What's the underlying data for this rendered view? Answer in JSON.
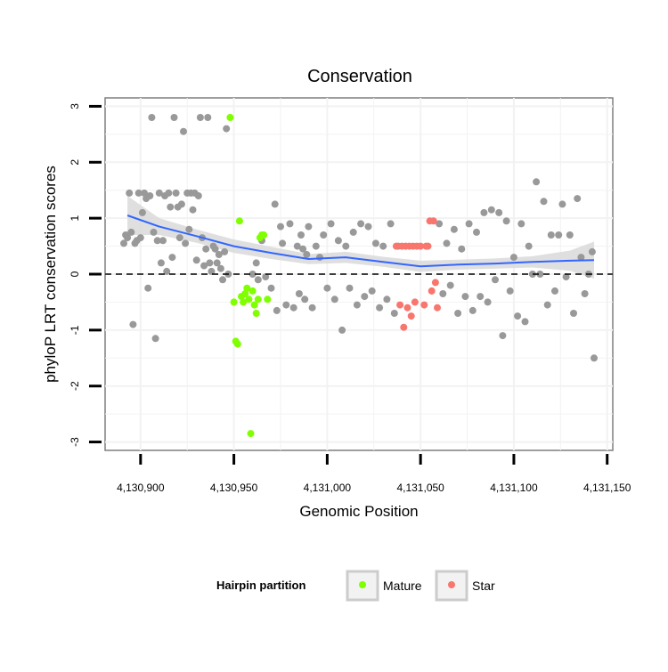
{
  "chart_data": {
    "type": "scatter",
    "title": "Conservation",
    "xlabel": "Genomic Position",
    "ylabel": "phyloP LRT conservation scores",
    "xlim": [
      4130881,
      4131153
    ],
    "ylim": [
      -3.15,
      3.15
    ],
    "x_ticks": [
      4130900,
      4130950,
      4131000,
      4131050,
      4131100,
      4131150
    ],
    "x_tick_labels": [
      "4,130,900",
      "4,130,950",
      "4,131,000",
      "4,131,050",
      "4,131,100",
      "4,131,150"
    ],
    "y_ticks": [
      -3,
      -2,
      -1,
      0,
      1,
      2,
      3
    ],
    "y_tick_labels": [
      "-3",
      "-2",
      "-1",
      "0",
      "1",
      "2",
      "3"
    ],
    "reference_line_y": 0,
    "grid": true,
    "legend": {
      "title": "Hairpin partition",
      "position": "bottom",
      "entries": [
        {
          "label": "Mature",
          "color": "#7fff00"
        },
        {
          "label": "Star",
          "color": "#f8766d"
        }
      ]
    },
    "colors": {
      "other": "#999999",
      "mature": "#7fff00",
      "star": "#f8766d",
      "smooth": "#3366ff",
      "ribbon": "#d9d9d9"
    },
    "series": [
      {
        "name": "Other",
        "x": [
          4130891,
          4130892,
          4130893,
          4130894,
          4130895,
          4130896,
          4130897,
          4130898,
          4130899,
          4130900,
          4130901,
          4130902,
          4130903,
          4130904,
          4130905,
          4130906,
          4130907,
          4130908,
          4130909,
          4130910,
          4130911,
          4130912,
          4130913,
          4130914,
          4130915,
          4130916,
          4130917,
          4130918,
          4130919,
          4130920,
          4130921,
          4130922,
          4130923,
          4130924,
          4130925,
          4130926,
          4130927,
          4130928,
          4130929,
          4130930,
          4130931,
          4130932,
          4130933,
          4130934,
          4130935,
          4130936,
          4130937,
          4130938,
          4130939,
          4130940,
          4130941,
          4130942,
          4130943,
          4130944,
          4130945,
          4130946,
          4130947,
          4130960,
          4130962,
          4130963,
          4130965,
          4130967,
          4130970,
          4130972,
          4130973,
          4130975,
          4130976,
          4130978,
          4130980,
          4130982,
          4130984,
          4130985,
          4130986,
          4130987,
          4130988,
          4130989,
          4130990,
          4130992,
          4130994,
          4130996,
          4130998,
          4131000,
          4131002,
          4131004,
          4131006,
          4131008,
          4131010,
          4131012,
          4131014,
          4131016,
          4131018,
          4131020,
          4131022,
          4131024,
          4131026,
          4131028,
          4131030,
          4131032,
          4131034,
          4131036,
          4131038,
          4131060,
          4131062,
          4131064,
          4131066,
          4131068,
          4131070,
          4131072,
          4131074,
          4131076,
          4131078,
          4131080,
          4131082,
          4131084,
          4131086,
          4131088,
          4131090,
          4131092,
          4131094,
          4131096,
          4131098,
          4131100,
          4131102,
          4131104,
          4131106,
          4131108,
          4131110,
          4131112,
          4131114,
          4131116,
          4131118,
          4131120,
          4131122,
          4131124,
          4131126,
          4131128,
          4131130,
          4131132,
          4131134,
          4131136,
          4131138,
          4131140,
          4131142,
          4131143
        ],
        "y": [
          0.55,
          0.7,
          0.65,
          1.45,
          0.75,
          -0.9,
          0.55,
          0.6,
          1.45,
          0.65,
          1.1,
          1.45,
          1.35,
          -0.25,
          1.4,
          2.8,
          0.75,
          -1.15,
          0.6,
          1.45,
          0.2,
          0.6,
          1.4,
          0.05,
          1.45,
          1.2,
          0.3,
          2.8,
          1.45,
          1.2,
          0.65,
          1.25,
          2.55,
          0.55,
          1.45,
          0.8,
          1.45,
          1.15,
          1.45,
          0.25,
          1.4,
          2.8,
          0.65,
          0.15,
          0.45,
          2.8,
          0.2,
          0.05,
          0.5,
          0.45,
          0.2,
          0.35,
          0.1,
          -0.1,
          0.4,
          2.6,
          0.0,
          0.0,
          0.2,
          -0.1,
          0.6,
          -0.05,
          -0.25,
          1.25,
          -0.65,
          0.85,
          0.55,
          -0.55,
          0.9,
          -0.6,
          0.5,
          -0.35,
          0.7,
          0.45,
          -0.45,
          0.35,
          0.85,
          -0.6,
          0.5,
          0.3,
          0.7,
          -0.25,
          0.9,
          -0.45,
          0.6,
          -1.0,
          0.5,
          -0.25,
          0.75,
          -0.55,
          0.9,
          -0.4,
          0.85,
          -0.3,
          0.55,
          -0.6,
          0.5,
          -0.45,
          0.9,
          -0.7,
          0.5,
          0.9,
          -0.35,
          0.55,
          -0.2,
          0.8,
          -0.7,
          0.45,
          -0.4,
          0.9,
          -0.65,
          0.75,
          -0.4,
          1.1,
          -0.5,
          1.15,
          -0.1,
          1.1,
          -1.1,
          0.95,
          -0.3,
          0.3,
          -0.75,
          0.9,
          -0.85,
          0.5,
          0.0,
          1.65,
          0.0,
          1.3,
          -0.55,
          0.7,
          -0.3,
          0.7,
          1.25,
          -0.05,
          0.7,
          -0.7,
          1.35,
          0.3,
          -0.35,
          0.0,
          0.4,
          -1.5
        ]
      },
      {
        "name": "Mature",
        "x": [
          4130948,
          4130950,
          4130951,
          4130952,
          4130953,
          4130954,
          4130955,
          4130956,
          4130957,
          4130958,
          4130959,
          4130960,
          4130961,
          4130962,
          4130963,
          4130964,
          4130965,
          4130966,
          4130968
        ],
        "y": [
          2.8,
          -0.5,
          -1.2,
          -1.25,
          0.95,
          -0.4,
          -0.5,
          -0.35,
          -0.25,
          -0.45,
          -2.85,
          -0.3,
          -0.55,
          -0.7,
          -0.45,
          0.65,
          0.7,
          0.7,
          -0.45
        ]
      },
      {
        "name": "Star",
        "x": [
          4131037,
          4131039,
          4131040,
          4131041,
          4131042,
          4131043,
          4131044,
          4131045,
          4131046,
          4131047,
          4131048,
          4131050,
          4131052,
          4131053,
          4131054,
          4131055,
          4131056,
          4131057,
          4131058,
          4131059
        ],
        "y": [
          0.5,
          -0.55,
          0.5,
          -0.95,
          0.5,
          -0.6,
          0.5,
          -0.75,
          0.5,
          -0.5,
          0.5,
          0.5,
          -0.55,
          0.5,
          0.5,
          0.95,
          -0.3,
          0.95,
          -0.15,
          -0.6
        ]
      }
    ],
    "smooth": {
      "x": [
        4130893,
        4130910,
        4130930,
        4130950,
        4130970,
        4130990,
        4131010,
        4131030,
        4131050,
        4131070,
        4131090,
        4131110,
        4131130,
        4131143
      ],
      "y": [
        1.05,
        0.85,
        0.68,
        0.5,
        0.38,
        0.27,
        0.3,
        0.22,
        0.14,
        0.17,
        0.19,
        0.22,
        0.24,
        0.25
      ],
      "lower": [
        0.7,
        0.7,
        0.56,
        0.38,
        0.27,
        0.18,
        0.2,
        0.13,
        0.04,
        0.08,
        0.1,
        0.12,
        0.06,
        -0.08
      ],
      "upper": [
        1.4,
        1.0,
        0.8,
        0.62,
        0.49,
        0.36,
        0.4,
        0.31,
        0.24,
        0.26,
        0.28,
        0.32,
        0.42,
        0.58
      ]
    }
  }
}
